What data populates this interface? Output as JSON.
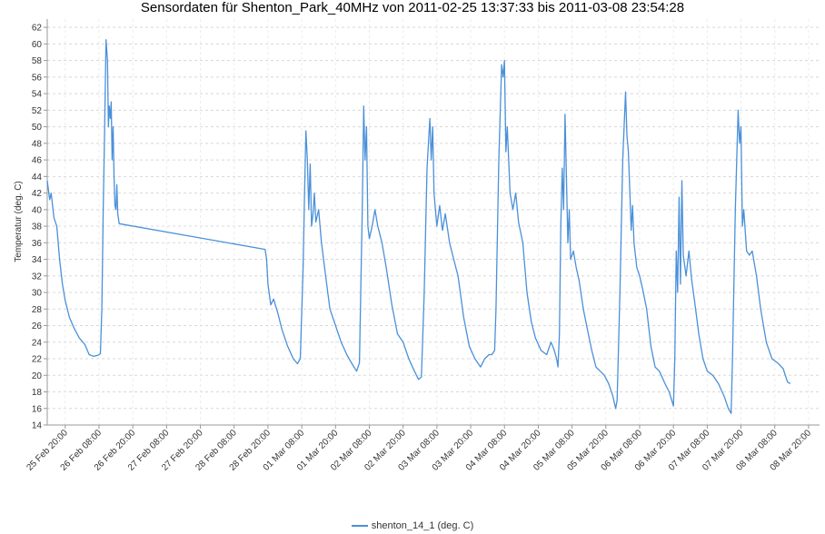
{
  "chart_data": {
    "type": "line",
    "title": "Sensordaten für Shenton_Park_40MHz von 2011-02-25 13:37:33 bis 2011-03-08 23:54:28",
    "ylabel": "Temperatur (deg. C)",
    "xlabel": "",
    "ylim": [
      14,
      63
    ],
    "y_ticks": [
      14,
      16,
      18,
      20,
      22,
      24,
      26,
      28,
      30,
      32,
      34,
      36,
      38,
      40,
      42,
      44,
      46,
      48,
      50,
      52,
      54,
      56,
      58,
      60,
      62
    ],
    "x_range": [
      "2011-02-25 13:37",
      "2011-03-08 23:54"
    ],
    "x_ticks": [
      {
        "t": "2011-02-25 20:00",
        "label": "25 Feb 20:00"
      },
      {
        "t": "2011-02-26 08:00",
        "label": "26 Feb 08:00"
      },
      {
        "t": "2011-02-26 20:00",
        "label": "26 Feb 20:00"
      },
      {
        "t": "2011-02-27 08:00",
        "label": "27 Feb 08:00"
      },
      {
        "t": "2011-02-27 20:00",
        "label": "27 Feb 20:00"
      },
      {
        "t": "2011-02-28 08:00",
        "label": "28 Feb 08:00"
      },
      {
        "t": "2011-02-28 20:00",
        "label": "28 Feb 20:00"
      },
      {
        "t": "2011-03-01 08:00",
        "label": "01 Mar 08:00"
      },
      {
        "t": "2011-03-01 20:00",
        "label": "01 Mar 20:00"
      },
      {
        "t": "2011-03-02 08:00",
        "label": "02 Mar 08:00"
      },
      {
        "t": "2011-03-02 20:00",
        "label": "02 Mar 20:00"
      },
      {
        "t": "2011-03-03 08:00",
        "label": "03 Mar 08:00"
      },
      {
        "t": "2011-03-03 20:00",
        "label": "03 Mar 20:00"
      },
      {
        "t": "2011-03-04 08:00",
        "label": "04 Mar 08:00"
      },
      {
        "t": "2011-03-04 20:00",
        "label": "04 Mar 20:00"
      },
      {
        "t": "2011-03-05 08:00",
        "label": "05 Mar 08:00"
      },
      {
        "t": "2011-03-05 20:00",
        "label": "05 Mar 20:00"
      },
      {
        "t": "2011-03-06 08:00",
        "label": "06 Mar 08:00"
      },
      {
        "t": "2011-03-06 20:00",
        "label": "06 Mar 20:00"
      },
      {
        "t": "2011-03-07 08:00",
        "label": "07 Mar 08:00"
      },
      {
        "t": "2011-03-07 20:00",
        "label": "07 Mar 20:00"
      },
      {
        "t": "2011-03-08 08:00",
        "label": "08 Mar 08:00"
      },
      {
        "t": "2011-03-08 20:00",
        "label": "08 Mar 20:00"
      }
    ],
    "grid": true,
    "legend_position": "bottom-center",
    "series": [
      {
        "name": "shenton_14_1 (deg. C)",
        "color": "#4a90d9",
        "points": [
          [
            "2011-02-25 13:37",
            43.5
          ],
          [
            "2011-02-25 14:30",
            41.2
          ],
          [
            "2011-02-25 15:00",
            42.0
          ],
          [
            "2011-02-25 16:00",
            39.0
          ],
          [
            "2011-02-25 17:00",
            38.0
          ],
          [
            "2011-02-25 18:00",
            34.0
          ],
          [
            "2011-02-25 19:00",
            31.0
          ],
          [
            "2011-02-25 20:00",
            29.0
          ],
          [
            "2011-02-25 21:30",
            27.0
          ],
          [
            "2011-02-25 23:00",
            25.8
          ],
          [
            "2011-02-26 01:00",
            24.5
          ],
          [
            "2011-02-26 03:00",
            23.7
          ],
          [
            "2011-02-26 04:30",
            22.5
          ],
          [
            "2011-02-26 06:00",
            22.3
          ],
          [
            "2011-02-26 07:30",
            22.4
          ],
          [
            "2011-02-26 08:30",
            22.6
          ],
          [
            "2011-02-26 09:00",
            28.0
          ],
          [
            "2011-02-26 09:30",
            40.0
          ],
          [
            "2011-02-26 10:00",
            50.0
          ],
          [
            "2011-02-26 10:30",
            60.5
          ],
          [
            "2011-02-26 11:00",
            58.0
          ],
          [
            "2011-02-26 11:20",
            50.0
          ],
          [
            "2011-02-26 11:40",
            52.5
          ],
          [
            "2011-02-26 12:00",
            51.0
          ],
          [
            "2011-02-26 12:20",
            53.0
          ],
          [
            "2011-02-26 12:40",
            46.0
          ],
          [
            "2011-02-26 13:00",
            50.0
          ],
          [
            "2011-02-26 13:20",
            44.0
          ],
          [
            "2011-02-26 13:40",
            40.5
          ],
          [
            "2011-02-26 14:00",
            40.0
          ],
          [
            "2011-02-26 14:20",
            43.0
          ],
          [
            "2011-02-26 14:40",
            39.5
          ],
          [
            "2011-02-26 15:10",
            38.3
          ],
          [
            "2011-02-28 19:00",
            35.2
          ],
          [
            "2011-02-28 19:30",
            34.0
          ],
          [
            "2011-02-28 20:00",
            31.0
          ],
          [
            "2011-02-28 21:00",
            28.5
          ],
          [
            "2011-02-28 22:00",
            29.2
          ],
          [
            "2011-02-28 23:30",
            27.5
          ],
          [
            "2011-03-01 01:00",
            25.5
          ],
          [
            "2011-03-01 03:00",
            23.5
          ],
          [
            "2011-03-01 05:00",
            22.0
          ],
          [
            "2011-03-01 06:30",
            21.4
          ],
          [
            "2011-03-01 07:30",
            22.0
          ],
          [
            "2011-03-01 08:30",
            33.0
          ],
          [
            "2011-03-01 09:00",
            42.0
          ],
          [
            "2011-03-01 09:30",
            49.5
          ],
          [
            "2011-03-01 10:00",
            46.0
          ],
          [
            "2011-03-01 10:30",
            40.0
          ],
          [
            "2011-03-01 11:00",
            45.5
          ],
          [
            "2011-03-01 11:30",
            38.0
          ],
          [
            "2011-03-01 12:00",
            39.5
          ],
          [
            "2011-03-01 12:30",
            42.0
          ],
          [
            "2011-03-01 13:00",
            38.5
          ],
          [
            "2011-03-01 14:00",
            40.0
          ],
          [
            "2011-03-01 15:00",
            36.0
          ],
          [
            "2011-03-01 16:30",
            32.0
          ],
          [
            "2011-03-01 18:00",
            28.0
          ],
          [
            "2011-03-01 20:00",
            26.0
          ],
          [
            "2011-03-01 22:00",
            24.0
          ],
          [
            "2011-03-02 00:00",
            22.5
          ],
          [
            "2011-03-02 02:00",
            21.3
          ],
          [
            "2011-03-02 03:30",
            20.5
          ],
          [
            "2011-03-02 04:30",
            21.5
          ],
          [
            "2011-03-02 05:30",
            40.0
          ],
          [
            "2011-03-02 06:00",
            52.5
          ],
          [
            "2011-03-02 06:30",
            46.0
          ],
          [
            "2011-03-02 07:00",
            50.0
          ],
          [
            "2011-03-02 07:30",
            38.0
          ],
          [
            "2011-03-02 08:00",
            36.5
          ],
          [
            "2011-03-02 09:00",
            38.0
          ],
          [
            "2011-03-02 10:00",
            40.0
          ],
          [
            "2011-03-02 11:00",
            38.0
          ],
          [
            "2011-03-02 12:30",
            36.0
          ],
          [
            "2011-03-02 14:00",
            33.0
          ],
          [
            "2011-03-02 16:00",
            28.5
          ],
          [
            "2011-03-02 18:00",
            25.0
          ],
          [
            "2011-03-02 20:00",
            24.0
          ],
          [
            "2011-03-02 22:00",
            22.0
          ],
          [
            "2011-03-03 00:00",
            20.5
          ],
          [
            "2011-03-03 01:30",
            19.5
          ],
          [
            "2011-03-03 02:30",
            19.8
          ],
          [
            "2011-03-03 03:30",
            30.0
          ],
          [
            "2011-03-03 04:30",
            45.0
          ],
          [
            "2011-03-03 05:30",
            51.0
          ],
          [
            "2011-03-03 06:00",
            46.0
          ],
          [
            "2011-03-03 06:30",
            50.0
          ],
          [
            "2011-03-03 07:00",
            42.0
          ],
          [
            "2011-03-03 08:00",
            38.0
          ],
          [
            "2011-03-03 09:00",
            40.5
          ],
          [
            "2011-03-03 10:00",
            37.5
          ],
          [
            "2011-03-03 11:00",
            39.5
          ],
          [
            "2011-03-03 12:30",
            36.0
          ],
          [
            "2011-03-03 14:00",
            34.0
          ],
          [
            "2011-03-03 15:30",
            32.0
          ],
          [
            "2011-03-03 17:30",
            27.0
          ],
          [
            "2011-03-03 19:30",
            23.5
          ],
          [
            "2011-03-03 21:30",
            22.0
          ],
          [
            "2011-03-03 23:30",
            21.0
          ],
          [
            "2011-03-04 01:00",
            22.0
          ],
          [
            "2011-03-04 02:30",
            22.5
          ],
          [
            "2011-03-04 03:30",
            22.5
          ],
          [
            "2011-03-04 04:30",
            23.0
          ],
          [
            "2011-03-04 05:00",
            28.0
          ],
          [
            "2011-03-04 06:00",
            46.0
          ],
          [
            "2011-03-04 07:00",
            57.5
          ],
          [
            "2011-03-04 07:30",
            56.0
          ],
          [
            "2011-03-04 08:00",
            58.0
          ],
          [
            "2011-03-04 08:30",
            47.0
          ],
          [
            "2011-03-04 09:00",
            50.0
          ],
          [
            "2011-03-04 10:00",
            42.0
          ],
          [
            "2011-03-04 11:00",
            40.0
          ],
          [
            "2011-03-04 12:00",
            42.0
          ],
          [
            "2011-03-04 13:00",
            38.5
          ],
          [
            "2011-03-04 14:30",
            36.0
          ],
          [
            "2011-03-04 16:00",
            30.0
          ],
          [
            "2011-03-04 17:30",
            26.5
          ],
          [
            "2011-03-04 19:00",
            24.5
          ],
          [
            "2011-03-04 21:00",
            23.0
          ],
          [
            "2011-03-04 23:00",
            22.5
          ],
          [
            "2011-03-05 00:30",
            24.0
          ],
          [
            "2011-03-05 01:30",
            23.2
          ],
          [
            "2011-03-05 02:30",
            22.0
          ],
          [
            "2011-03-05 03:00",
            21.0
          ],
          [
            "2011-03-05 03:30",
            25.0
          ],
          [
            "2011-03-05 04:00",
            38.0
          ],
          [
            "2011-03-05 04:30",
            45.0
          ],
          [
            "2011-03-05 05:00",
            40.0
          ],
          [
            "2011-03-05 05:30",
            51.5
          ],
          [
            "2011-03-05 06:00",
            44.0
          ],
          [
            "2011-03-05 06:30",
            36.0
          ],
          [
            "2011-03-05 07:00",
            40.0
          ],
          [
            "2011-03-05 07:30",
            34.0
          ],
          [
            "2011-03-05 08:30",
            35.0
          ],
          [
            "2011-03-05 09:30",
            33.0
          ],
          [
            "2011-03-05 10:30",
            31.5
          ],
          [
            "2011-03-05 12:00",
            28.0
          ],
          [
            "2011-03-05 13:30",
            25.5
          ],
          [
            "2011-03-05 15:00",
            23.0
          ],
          [
            "2011-03-05 16:30",
            21.0
          ],
          [
            "2011-03-05 18:00",
            20.5
          ],
          [
            "2011-03-05 19:30",
            20.0
          ],
          [
            "2011-03-05 21:00",
            19.0
          ],
          [
            "2011-03-05 22:30",
            17.5
          ],
          [
            "2011-03-05 23:30",
            16.0
          ],
          [
            "2011-03-06 00:00",
            17.0
          ],
          [
            "2011-03-06 01:00",
            30.0
          ],
          [
            "2011-03-06 02:00",
            46.0
          ],
          [
            "2011-03-06 03:00",
            54.2
          ],
          [
            "2011-03-06 03:30",
            49.0
          ],
          [
            "2011-03-06 04:00",
            47.0
          ],
          [
            "2011-03-06 05:00",
            37.5
          ],
          [
            "2011-03-06 05:30",
            40.5
          ],
          [
            "2011-03-06 06:00",
            36.0
          ],
          [
            "2011-03-06 07:00",
            33.0
          ],
          [
            "2011-03-06 08:00",
            32.0
          ],
          [
            "2011-03-06 09:00",
            30.5
          ],
          [
            "2011-03-06 10:30",
            28.0
          ],
          [
            "2011-03-06 12:00",
            23.5
          ],
          [
            "2011-03-06 13:30",
            21.0
          ],
          [
            "2011-03-06 15:00",
            20.5
          ],
          [
            "2011-03-06 17:00",
            19.0
          ],
          [
            "2011-03-06 18:30",
            18.0
          ],
          [
            "2011-03-06 20:00",
            16.3
          ],
          [
            "2011-03-06 20:30",
            22.0
          ],
          [
            "2011-03-06 21:00",
            35.0
          ],
          [
            "2011-03-06 21:30",
            30.0
          ],
          [
            "2011-03-06 22:00",
            41.5
          ],
          [
            "2011-03-06 22:30",
            31.0
          ],
          [
            "2011-03-06 23:00",
            43.5
          ],
          [
            "2011-03-06 23:30",
            34.5
          ],
          [
            "2011-03-07 00:30",
            32.0
          ],
          [
            "2011-03-07 01:30",
            35.0
          ],
          [
            "2011-03-07 02:30",
            31.5
          ],
          [
            "2011-03-07 03:30",
            29.0
          ],
          [
            "2011-03-07 05:00",
            25.0
          ],
          [
            "2011-03-07 06:30",
            22.0
          ],
          [
            "2011-03-07 08:00",
            20.5
          ],
          [
            "2011-03-07 10:00",
            20.0
          ],
          [
            "2011-03-07 12:00",
            19.0
          ],
          [
            "2011-03-07 14:00",
            17.5
          ],
          [
            "2011-03-07 15:30",
            16.0
          ],
          [
            "2011-03-07 16:30",
            15.4
          ],
          [
            "2011-03-07 17:00",
            22.0
          ],
          [
            "2011-03-07 18:00",
            40.0
          ],
          [
            "2011-03-07 19:00",
            52.0
          ],
          [
            "2011-03-07 19:30",
            48.0
          ],
          [
            "2011-03-07 20:00",
            50.0
          ],
          [
            "2011-03-07 20:30",
            38.0
          ],
          [
            "2011-03-07 21:00",
            40.0
          ],
          [
            "2011-03-07 22:00",
            35.0
          ],
          [
            "2011-03-07 23:00",
            34.5
          ],
          [
            "2011-03-08 00:00",
            35.0
          ],
          [
            "2011-03-08 01:30",
            32.0
          ],
          [
            "2011-03-08 03:00",
            28.0
          ],
          [
            "2011-03-08 05:00",
            24.0
          ],
          [
            "2011-03-08 07:00",
            22.0
          ],
          [
            "2011-03-08 09:00",
            21.5
          ],
          [
            "2011-03-08 11:00",
            20.8
          ],
          [
            "2011-03-08 12:30",
            19.2
          ],
          [
            "2011-03-08 13:30",
            19.0
          ]
        ]
      }
    ]
  }
}
